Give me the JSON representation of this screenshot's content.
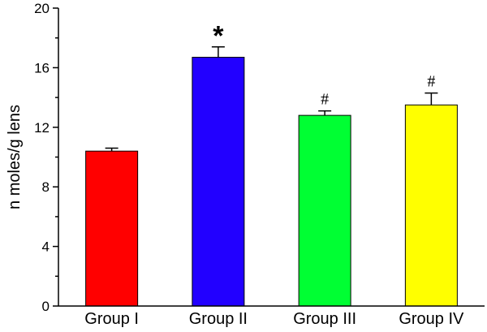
{
  "chart_data": {
    "type": "bar",
    "title": "",
    "xlabel": "",
    "ylabel": "n moles/g lens",
    "ylim": [
      0,
      20
    ],
    "yticks": [
      0,
      4,
      8,
      12,
      16,
      20
    ],
    "grid": false,
    "legend": "none",
    "categories": [
      "Group I",
      "Group II",
      "Group III",
      "Group IV"
    ],
    "values": [
      10.4,
      16.7,
      12.8,
      13.5
    ],
    "errors": [
      0.2,
      0.7,
      0.3,
      0.8
    ],
    "colors": [
      "#ff0000",
      "#2200ff",
      "#00ff33",
      "#ffff00"
    ],
    "annotations": [
      "",
      "*",
      "#",
      "#"
    ]
  }
}
